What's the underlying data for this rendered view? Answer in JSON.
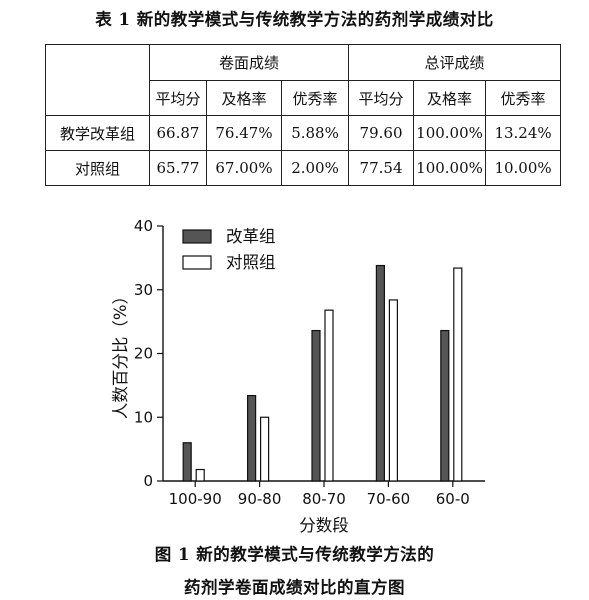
{
  "table": {
    "caption": "表 1 新的教学模式与传统教学方法的药剂学成绩对比",
    "group_headers": [
      "卷面成绩",
      "总评成绩"
    ],
    "sub_headers": [
      "平均分",
      "及格率",
      "优秀率",
      "平均分",
      "及格率",
      "优秀率"
    ],
    "rows": [
      {
        "label": "教学改革组",
        "cells": [
          "66.87",
          "76.47%",
          "5.88%",
          "79.60",
          "100.00%",
          "13.24%"
        ]
      },
      {
        "label": "对照组",
        "cells": [
          "65.77",
          "67.00%",
          "2.00%",
          "77.54",
          "100.00%",
          "10.00%"
        ]
      }
    ]
  },
  "figure": {
    "caption_line1": "图 1 新的教学模式与传统教学方法的",
    "caption_line2": "药剂学卷面成绩对比的直方图"
  },
  "chart_data": {
    "type": "bar",
    "xlabel": "分数段",
    "ylabel": "人数百分比（%）",
    "categories": [
      "100-90",
      "90-80",
      "80-70",
      "70-60",
      "60-0"
    ],
    "yticks": [
      "0",
      "10",
      "20",
      "30",
      "40"
    ],
    "ylim": [
      0,
      40
    ],
    "legend_position": "top-left",
    "grid": false,
    "series": [
      {
        "name": "改革组",
        "color": "#555555",
        "values": [
          6.0,
          13.4,
          23.6,
          33.8,
          23.6
        ]
      },
      {
        "name": "对照组",
        "color": "#ffffff",
        "values": [
          1.8,
          10.0,
          26.8,
          28.4,
          33.4
        ]
      }
    ]
  }
}
